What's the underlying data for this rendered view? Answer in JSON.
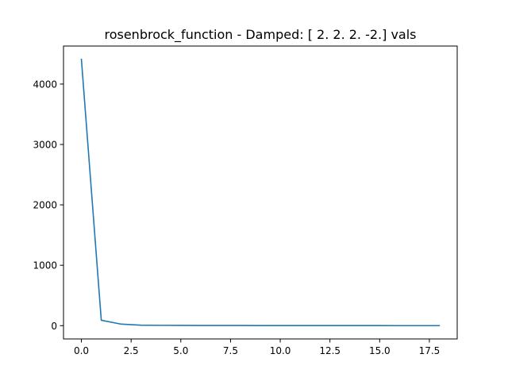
{
  "chart_data": {
    "type": "line",
    "title": "rosenbrock_function - Damped: [ 2.  2.  2. -2.] vals",
    "xlabel": "",
    "ylabel": "",
    "xlim": [
      -0.9,
      18.9
    ],
    "ylim": [
      -220,
      4630
    ],
    "x_ticks": [
      0.0,
      2.5,
      5.0,
      7.5,
      10.0,
      12.5,
      15.0,
      17.5
    ],
    "x_tick_labels": [
      "0.0",
      "2.5",
      "5.0",
      "7.5",
      "10.0",
      "12.5",
      "15.0",
      "17.5"
    ],
    "y_ticks": [
      0,
      1000,
      2000,
      3000,
      4000
    ],
    "y_tick_labels": [
      "0",
      "1000",
      "2000",
      "3000",
      "4000"
    ],
    "grid": false,
    "series": [
      {
        "color": "#1f77b4",
        "x": [
          0,
          1,
          2,
          3,
          4,
          5,
          6,
          7,
          8,
          9,
          10,
          11,
          12,
          13,
          14,
          15,
          16,
          17,
          18
        ],
        "values": [
          4410,
          90,
          25,
          8,
          5,
          4,
          3,
          2.5,
          2,
          1.5,
          1.2,
          1,
          0.8,
          0.6,
          0.5,
          0.4,
          0.3,
          0.2,
          0.1
        ]
      }
    ]
  }
}
